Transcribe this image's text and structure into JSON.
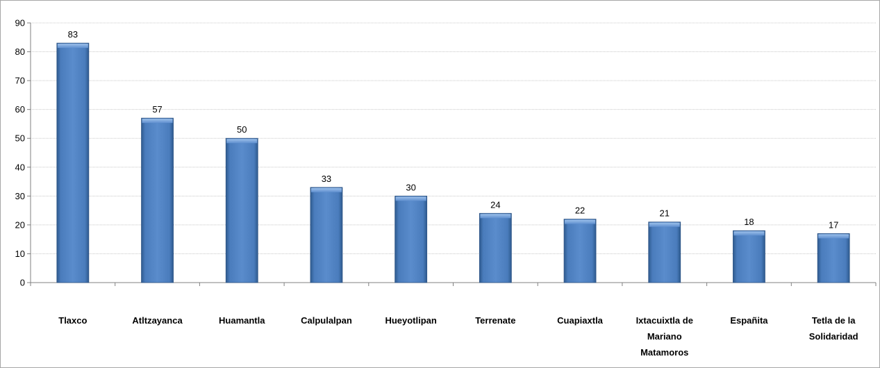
{
  "chart_data": {
    "type": "bar",
    "categories": [
      "Tlaxco",
      "Atltzayanca",
      "Huamantla",
      "Calpulalpan",
      "Hueyotlipan",
      "Terrenate",
      "Cuapiaxtla",
      "Ixtacuixtla de Mariano Matamoros",
      "Españita",
      "Tetla de la Solidaridad"
    ],
    "category_lines": [
      [
        "Tlaxco"
      ],
      [
        "Atltzayanca"
      ],
      [
        "Huamantla"
      ],
      [
        "Calpulalpan"
      ],
      [
        "Hueyotlipan"
      ],
      [
        "Terrenate"
      ],
      [
        "Cuapiaxtla"
      ],
      [
        "Ixtacuixtla de",
        "Mariano",
        "Matamoros"
      ],
      [
        "Españita"
      ],
      [
        "Tetla de la",
        "Solidaridad"
      ]
    ],
    "values": [
      83,
      57,
      50,
      33,
      30,
      24,
      22,
      21,
      18,
      17
    ],
    "ylim": [
      0,
      90
    ],
    "yticks": [
      0,
      10,
      20,
      30,
      40,
      50,
      60,
      70,
      80,
      90
    ],
    "grid": true,
    "bar_color": "#4f81bd",
    "title": "",
    "xlabel": "",
    "ylabel": ""
  }
}
